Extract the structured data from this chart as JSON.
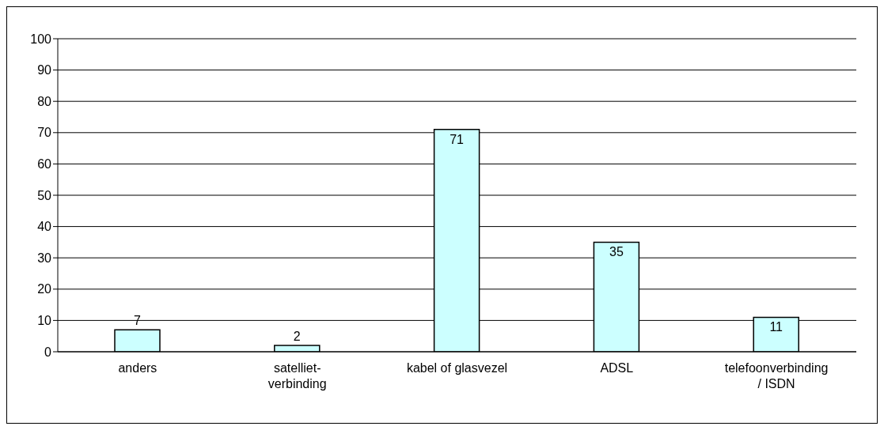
{
  "chart_data": {
    "type": "bar",
    "categories": [
      "anders",
      "satelliet-verbinding",
      "kabel of glasvezel",
      "ADSL",
      "telefoonverbinding / ISDN"
    ],
    "values": [
      7,
      2,
      71,
      35,
      11
    ],
    "color": "#ccffff",
    "ylim": [
      0,
      100
    ],
    "yticks": [
      0,
      10,
      20,
      30,
      40,
      50,
      60,
      70,
      80,
      90,
      100
    ],
    "grid": "y",
    "data_labels": true
  }
}
